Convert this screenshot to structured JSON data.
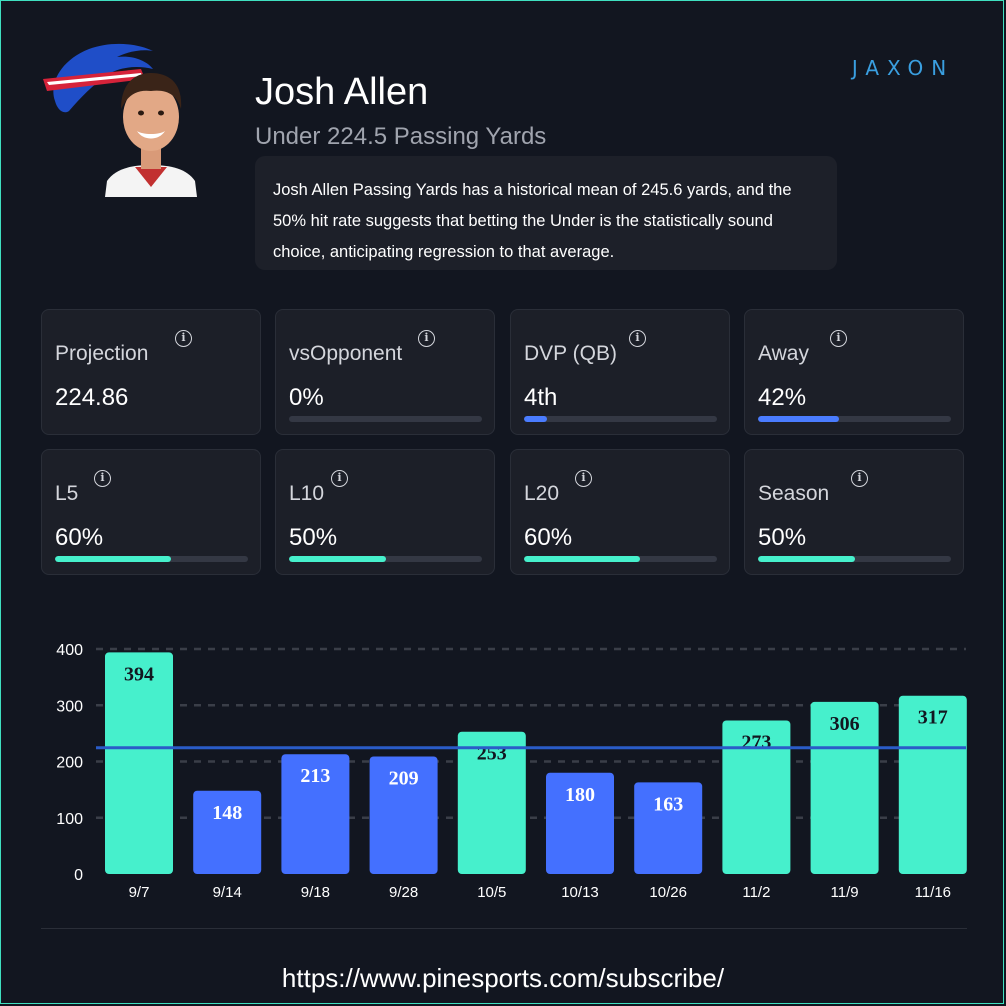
{
  "player": {
    "name": "Josh Allen",
    "prop_line": "Under 224.5 Passing Yards",
    "summary": "Josh Allen Passing Yards has a historical mean of 245.6 yards, and the 50% hit rate suggests that betting the Under is the statistically sound choice, anticipating regression to that average."
  },
  "brand": {
    "logo_icon": "buffalo-bills-logo",
    "wordmark": "JAXON",
    "accent": "#3a9fe0"
  },
  "stats": [
    {
      "label": "Projection",
      "value": "224.86",
      "fill": null
    },
    {
      "label": "vsOpponent",
      "value": "0%",
      "fill": 0.0,
      "color": "#4a7cff"
    },
    {
      "label": "DVP (QB)",
      "value": "4th",
      "fill": 0.12,
      "color": "#4a7cff"
    },
    {
      "label": "Away",
      "value": "42%",
      "fill": 0.42,
      "color": "#4a7cff"
    },
    {
      "label": "L5",
      "value": "60%",
      "fill": 0.6,
      "color": "#46f0cc"
    },
    {
      "label": "L10",
      "value": "50%",
      "fill": 0.5,
      "color": "#46f0cc"
    },
    {
      "label": "L20",
      "value": "60%",
      "fill": 0.6,
      "color": "#46f0cc"
    },
    {
      "label": "Season",
      "value": "50%",
      "fill": 0.5,
      "color": "#46f0cc"
    }
  ],
  "chart_data": {
    "type": "bar",
    "categories": [
      "9/7",
      "9/14",
      "9/18",
      "9/28",
      "10/5",
      "10/13",
      "10/26",
      "11/2",
      "11/9",
      "11/16"
    ],
    "values": [
      394,
      148,
      213,
      209,
      253,
      180,
      163,
      273,
      306,
      317
    ],
    "ylim": [
      0,
      400
    ],
    "yticks": [
      0,
      100,
      200,
      300,
      400
    ],
    "line_value": 224.5,
    "grid": true,
    "colors": {
      "over": "#46f0cc",
      "under": "#4470ff",
      "line": "#2a5cc8"
    }
  },
  "footer": {
    "url": "https://www.pinesports.com/subscribe/"
  }
}
